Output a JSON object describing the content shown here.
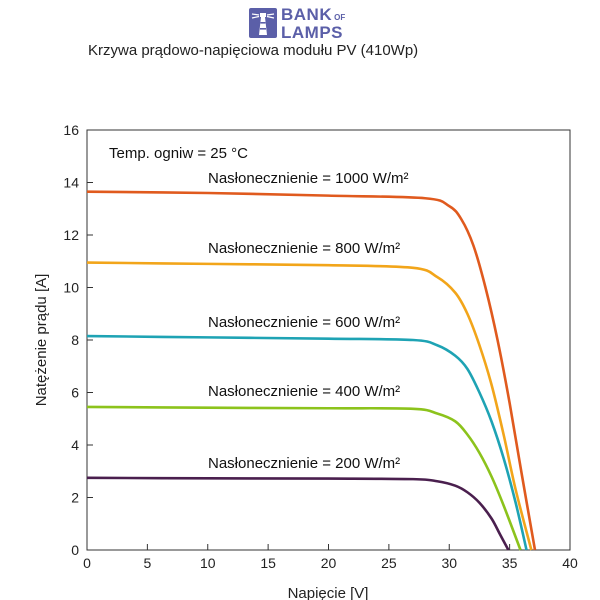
{
  "brand": {
    "line1": "BANK",
    "line1_small": "OF",
    "line2": "LAMPS",
    "color": "#5b5fa8"
  },
  "chart_data": {
    "type": "line",
    "title": "Krzywa prądowo-napięciowa modułu PV (410Wp)",
    "xlabel": "Napięcie  [V]",
    "ylabel": "Natężenie prądu  [A]",
    "xlim": [
      0,
      40
    ],
    "ylim": [
      0,
      16
    ],
    "xticks": [
      0,
      5,
      10,
      15,
      20,
      25,
      30,
      35,
      40
    ],
    "yticks": [
      0,
      2,
      4,
      6,
      8,
      10,
      12,
      14,
      16
    ],
    "grid": false,
    "annotation": "Temp. ogniw = 25 °C",
    "series": [
      {
        "name": "Nasłonecznienie = 1000 W/m²",
        "color": "#e05a1e",
        "x": [
          0,
          10,
          20,
          28,
          30,
          31,
          32,
          33,
          34,
          35,
          36,
          37.1
        ],
        "y": [
          13.65,
          13.6,
          13.5,
          13.4,
          13.1,
          12.6,
          11.6,
          10.0,
          8.0,
          5.6,
          2.9,
          0
        ]
      },
      {
        "name": "Nasłonecznienie = 800 W/m²",
        "color": "#f2a51a",
        "x": [
          0,
          10,
          20,
          27,
          29,
          30.5,
          31.5,
          32.5,
          33.5,
          34.5,
          35.5,
          36.8
        ],
        "y": [
          10.95,
          10.9,
          10.85,
          10.75,
          10.4,
          9.8,
          9.0,
          7.8,
          6.3,
          4.4,
          2.3,
          0
        ]
      },
      {
        "name": "Nasłonecznienie = 600 W/m²",
        "color": "#1ea3b4",
        "x": [
          0,
          10,
          20,
          27,
          29,
          30.5,
          31.5,
          32.5,
          33.5,
          34.5,
          35.5,
          36.4
        ],
        "y": [
          8.15,
          8.1,
          8.05,
          8.0,
          7.8,
          7.4,
          6.9,
          6.0,
          4.9,
          3.5,
          1.8,
          0
        ]
      },
      {
        "name": "Nasłonecznienie = 400 W/m²",
        "color": "#8cc31c",
        "x": [
          0,
          10,
          20,
          27,
          29,
          30.5,
          31.5,
          32.5,
          33.5,
          34.5,
          35.9
        ],
        "y": [
          5.45,
          5.42,
          5.4,
          5.38,
          5.2,
          4.9,
          4.4,
          3.7,
          2.8,
          1.7,
          0
        ]
      },
      {
        "name": "Nasłonecznienie = 200 W/m²",
        "color": "#4a1f4e",
        "x": [
          0,
          10,
          20,
          27,
          29,
          30.5,
          31.5,
          32.5,
          33.5,
          34.2,
          34.9
        ],
        "y": [
          2.75,
          2.73,
          2.72,
          2.7,
          2.62,
          2.45,
          2.2,
          1.8,
          1.2,
          0.6,
          0
        ]
      }
    ]
  }
}
